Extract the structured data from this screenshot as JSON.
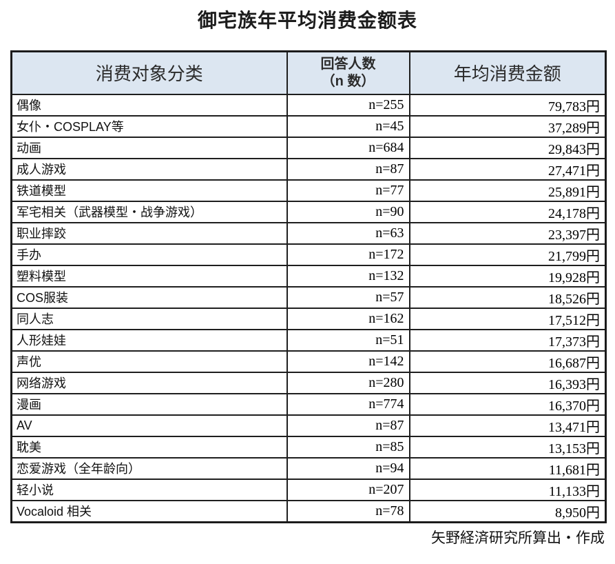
{
  "page": {
    "title": "御宅族年平均消费金额表",
    "source_note": "矢野経済研究所算出・作成"
  },
  "colors": {
    "header_bg": "#dce6f1",
    "border": "#1e1e1e",
    "background": "#ffffff"
  },
  "table": {
    "headers": {
      "category": "消费对象分类",
      "respondents_line1": "回答人数",
      "respondents_line2": "（n 数）",
      "amount": "年均消费金额"
    },
    "rows": [
      {
        "category": "偶像",
        "n": "n=255",
        "amount": "79,783円"
      },
      {
        "category": "女仆・COSPLAY等",
        "n": "n=45",
        "amount": "37,289円"
      },
      {
        "category": "动画",
        "n": "n=684",
        "amount": "29,843円"
      },
      {
        "category": "成人游戏",
        "n": "n=87",
        "amount": "27,471円"
      },
      {
        "category": "铁道模型",
        "n": "n=77",
        "amount": "25,891円"
      },
      {
        "category": "军宅相关（武器模型・战争游戏）",
        "n": "n=90",
        "amount": "24,178円"
      },
      {
        "category": "职业摔跤",
        "n": "n=63",
        "amount": "23,397円"
      },
      {
        "category": "手办",
        "n": "n=172",
        "amount": "21,799円"
      },
      {
        "category": "塑料模型",
        "n": "n=132",
        "amount": "19,928円"
      },
      {
        "category": "COS服装",
        "n": "n=57",
        "amount": "18,526円"
      },
      {
        "category": "同人志",
        "n": "n=162",
        "amount": "17,512円"
      },
      {
        "category": "人形娃娃",
        "n": "n=51",
        "amount": "17,373円"
      },
      {
        "category": "声优",
        "n": "n=142",
        "amount": "16,687円"
      },
      {
        "category": "网络游戏",
        "n": "n=280",
        "amount": "16,393円"
      },
      {
        "category": "漫画",
        "n": "n=774",
        "amount": "16,370円"
      },
      {
        "category": "AV",
        "n": "n=87",
        "amount": "13,471円"
      },
      {
        "category": "耽美",
        "n": "n=85",
        "amount": "13,153円"
      },
      {
        "category": "恋爱游戏（全年龄向）",
        "n": "n=94",
        "amount": "11,681円"
      },
      {
        "category": "轻小说",
        "n": "n=207",
        "amount": "11,133円"
      },
      {
        "category": "Vocaloid 相关",
        "n": "n=78",
        "amount": "8,950円"
      }
    ]
  },
  "chart_data": {
    "type": "table",
    "title": "御宅族年平均消费金额表",
    "columns": [
      "消费对象分类",
      "回答人数（n数）",
      "年均消费金额"
    ],
    "categories": [
      "偶像",
      "女仆・COSPLAY等",
      "动画",
      "成人游戏",
      "铁道模型",
      "军宅相关（武器模型・战争游戏）",
      "职业摔跤",
      "手办",
      "塑料模型",
      "COS服装",
      "同人志",
      "人形娃娃",
      "声优",
      "网络游戏",
      "漫画",
      "AV",
      "耽美",
      "恋爱游戏（全年龄向）",
      "轻小说",
      "Vocaloid 相关"
    ],
    "respondents_n": [
      255,
      45,
      684,
      87,
      77,
      90,
      63,
      172,
      132,
      57,
      162,
      51,
      142,
      280,
      774,
      87,
      85,
      94,
      207,
      78
    ],
    "avg_annual_spend_yen": [
      79783,
      37289,
      29843,
      27471,
      25891,
      24178,
      23397,
      21799,
      19928,
      18526,
      17512,
      17373,
      16687,
      16393,
      16370,
      13471,
      13153,
      11681,
      11133,
      8950
    ],
    "source": "矢野経済研究所算出・作成"
  }
}
